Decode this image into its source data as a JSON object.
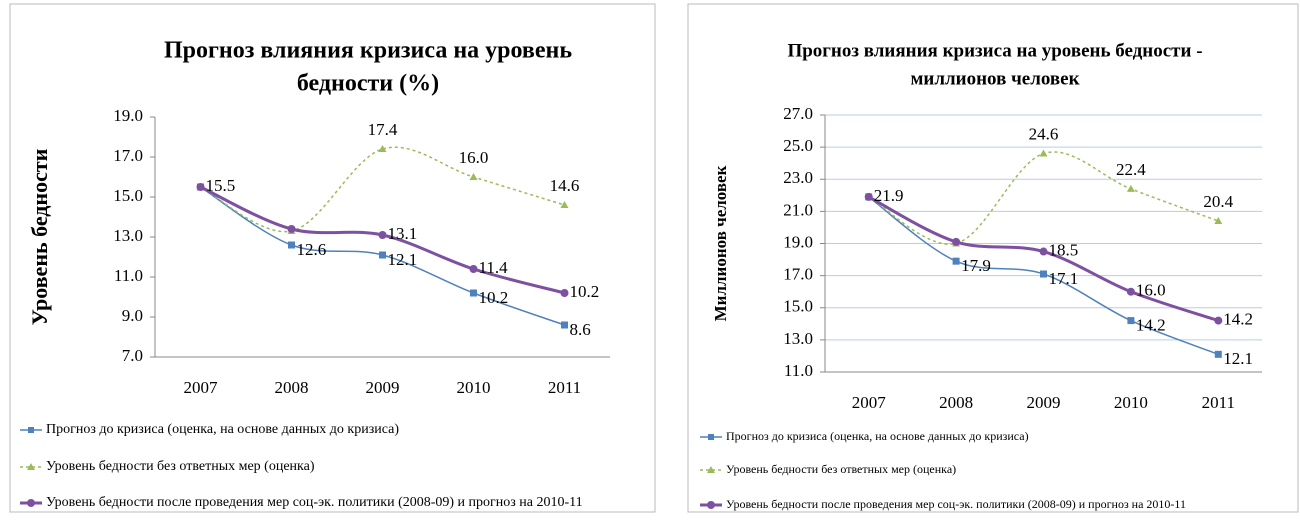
{
  "chart_data": [
    {
      "type": "line",
      "title": [
        "Прогноз влияния кризиса на уровень",
        "бедности (%)"
      ],
      "y_label": "Уровень бедности",
      "categories": [
        "2007",
        "2008",
        "2009",
        "2010",
        "2011"
      ],
      "ylim": [
        7,
        19
      ],
      "yticks": [
        {
          "value": 7,
          "label": "7.0"
        },
        {
          "value": 9,
          "label": "9.0"
        },
        {
          "value": 11,
          "label": "11.0"
        },
        {
          "value": 13,
          "label": "13.0"
        },
        {
          "value": 15,
          "label": "15.0"
        },
        {
          "value": 17,
          "label": "17.0"
        },
        {
          "value": 19,
          "label": "19.0"
        }
      ],
      "grid": false,
      "series": [
        {
          "name": "Прогноз до кризиса (оценка, на основе данных до кризиса)",
          "color": "#4f81bd",
          "values": [
            15.5,
            12.6,
            12.1,
            10.2,
            8.6
          ],
          "value_labels": [
            null,
            "12.6",
            "12.1",
            "10.2",
            "8.6"
          ]
        },
        {
          "name": "Уровень бедности без ответных мер (оценка)",
          "color": "#9bbb59",
          "values": [
            15.5,
            13.3,
            17.4,
            16.0,
            14.6
          ],
          "value_labels": [
            null,
            null,
            "17.4",
            "16.0",
            "14.6"
          ]
        },
        {
          "name": "Уровень бедности после проведения мер соц-эк. политики (2008-09) и прогноз на 2010-11",
          "color": "#7e50a0",
          "values": [
            15.5,
            13.4,
            13.1,
            11.4,
            10.2
          ],
          "value_labels": [
            "15.5",
            null,
            "13.1",
            "11.4",
            "10.2"
          ]
        }
      ]
    },
    {
      "type": "line",
      "title": [
        "Прогноз влияния кризиса на уровень бедности -",
        "миллионов человек"
      ],
      "y_label": "Миллионов человек",
      "categories": [
        "2007",
        "2008",
        "2009",
        "2010",
        "2011"
      ],
      "ylim": [
        11,
        27
      ],
      "yticks": [
        {
          "value": 11,
          "label": "11.0"
        },
        {
          "value": 13,
          "label": "13.0"
        },
        {
          "value": 15,
          "label": "15.0"
        },
        {
          "value": 17,
          "label": "17.0"
        },
        {
          "value": 19,
          "label": "19.0"
        },
        {
          "value": 21,
          "label": "21.0"
        },
        {
          "value": 23,
          "label": "23.0"
        },
        {
          "value": 25,
          "label": "25.0"
        },
        {
          "value": 27,
          "label": "27.0"
        }
      ],
      "grid": true,
      "series": [
        {
          "name": "Прогноз до кризиса (оценка, на основе данных до кризиса)",
          "color": "#4f81bd",
          "values": [
            21.9,
            17.9,
            17.1,
            14.2,
            12.1
          ],
          "value_labels": [
            null,
            "17.9",
            "17.1",
            "14.2",
            "12.1"
          ]
        },
        {
          "name": "Уровень бедности без ответных мер (оценка)",
          "color": "#9bbb59",
          "values": [
            21.9,
            19.0,
            24.6,
            22.4,
            20.4
          ],
          "value_labels": [
            null,
            null,
            "24.6",
            "22.4",
            "20.4"
          ]
        },
        {
          "name": "Уровень бедности после проведения мер соц-эк. политики (2008-09) и прогноз на 2010-11",
          "color": "#7e50a0",
          "values": [
            21.9,
            19.1,
            18.5,
            16.0,
            14.2
          ],
          "value_labels": [
            "21.9",
            null,
            "18.5",
            "16.0",
            "14.2"
          ]
        }
      ]
    }
  ]
}
